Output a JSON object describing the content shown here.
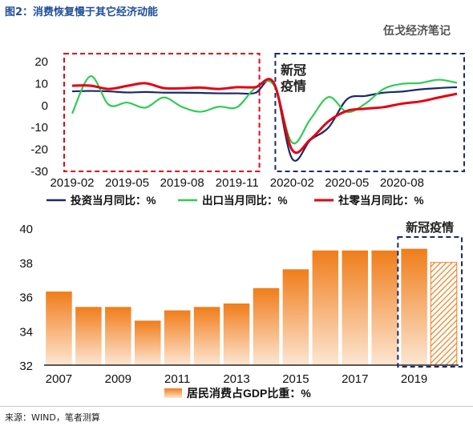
{
  "figure_title": "图2：消费恢复慢于其它经济动能",
  "brand": "伍戈经济笔记",
  "source": "来源：WIND，笔者测算",
  "chart_data": [
    {
      "type": "line",
      "ylim": [
        -30,
        20
      ],
      "yticks": [
        20,
        10,
        0,
        -10,
        -20,
        -30
      ],
      "xticks": [
        "2019-02",
        "2019-05",
        "2019-08",
        "2019-11",
        "2020-02",
        "2020-05",
        "2020-08"
      ],
      "annotation": "新冠\n疫情",
      "grid": false,
      "legend_position": "bottom",
      "x": [
        "2019-02",
        "2019-03",
        "2019-04",
        "2019-05",
        "2019-06",
        "2019-07",
        "2019-08",
        "2019-09",
        "2019-10",
        "2019-11",
        "2019-12",
        "2020-01",
        "2020-02",
        "2020-03",
        "2020-04",
        "2020-05",
        "2020-06",
        "2020-07",
        "2020-08",
        "2020-09",
        "2020-10",
        "2020-11"
      ],
      "series": [
        {
          "name": "投资当月同比：%",
          "color": "#1a2a6c",
          "values": [
            6.1,
            6.3,
            6.1,
            5.6,
            5.8,
            5.5,
            5.5,
            5.4,
            5.2,
            5.2,
            5.4,
            10.0,
            -24.5,
            -16.1,
            -10.3,
            2.5,
            4.0,
            5.5,
            6.0,
            7.0,
            7.6,
            8.0
          ]
        },
        {
          "name": "出口当月同比：%",
          "color": "#2fcc55",
          "values": [
            -4.0,
            13.0,
            0.0,
            1.0,
            -1.3,
            3.3,
            -1.0,
            -3.2,
            -0.9,
            -1.1,
            7.6,
            9.0,
            -17.2,
            -6.6,
            3.5,
            -3.3,
            0.5,
            7.2,
            9.5,
            9.9,
            11.4,
            10.0
          ]
        },
        {
          "name": "社零当月同比：%",
          "color": "#e60012",
          "values": [
            8.7,
            8.7,
            7.2,
            8.6,
            9.8,
            7.6,
            7.5,
            7.8,
            7.2,
            8.0,
            8.0,
            10.0,
            -20.5,
            -15.8,
            -7.5,
            -2.8,
            -1.8,
            -1.1,
            0.5,
            1.5,
            3.3,
            5.0
          ]
        }
      ]
    },
    {
      "type": "bar",
      "categories": [
        "2007",
        "2008",
        "2009",
        "2010",
        "2011",
        "2012",
        "2013",
        "2014",
        "2015",
        "2016",
        "2017",
        "2018",
        "2019",
        "2020"
      ],
      "xtick_labels": [
        "2007",
        "2009",
        "2011",
        "2013",
        "2015",
        "2017",
        "2019"
      ],
      "ylim": [
        32,
        40
      ],
      "yticks": [
        40,
        38,
        36,
        34,
        32
      ],
      "annotation": "新冠疫情",
      "grid": false,
      "legend_position": "bottom",
      "series": [
        {
          "name": "居民消费占GDP比重：%",
          "color": "#f07d1a",
          "values": [
            36.3,
            35.4,
            35.4,
            34.6,
            35.2,
            35.4,
            35.6,
            36.5,
            37.6,
            38.7,
            38.7,
            38.7,
            38.8,
            38.0
          ],
          "hatched": [
            false,
            false,
            false,
            false,
            false,
            false,
            false,
            false,
            false,
            false,
            false,
            false,
            false,
            true
          ]
        }
      ]
    }
  ]
}
